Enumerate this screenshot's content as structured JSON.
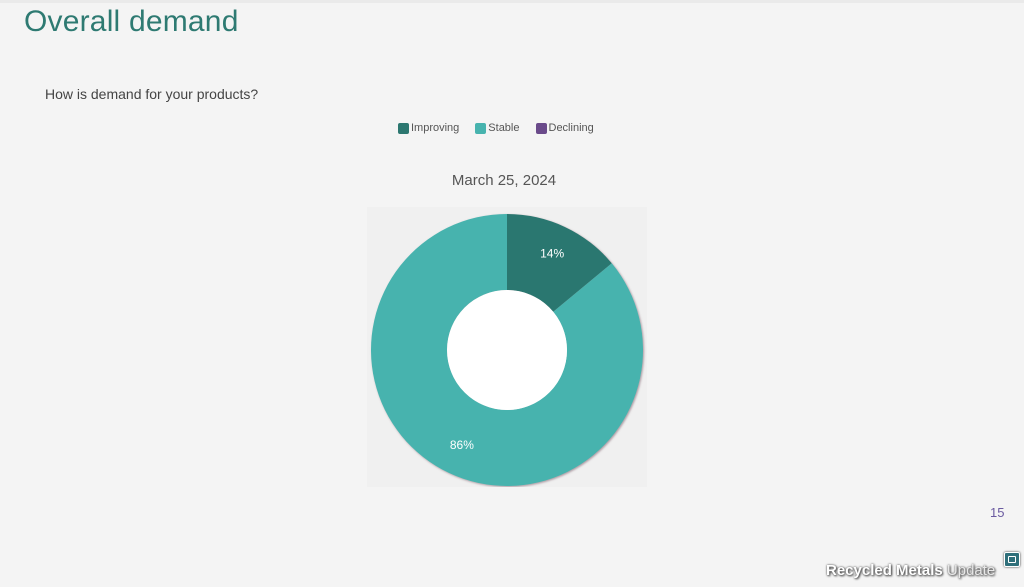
{
  "slide": {
    "title": "Overall demand",
    "question": "How is demand for your products?",
    "page_number": "15"
  },
  "brand": {
    "bold": "Recycled Metals",
    "light": "Update"
  },
  "chart_data": {
    "type": "pie",
    "title": "March 25, 2024",
    "categories": [
      "Improving",
      "Stable",
      "Declining"
    ],
    "values": [
      14,
      86,
      0
    ],
    "labels": [
      "14%",
      "86%",
      ""
    ],
    "colors": [
      "#2c7770",
      "#47b3ae",
      "#6a4a8a"
    ],
    "donut": true,
    "legend_position": "top"
  }
}
